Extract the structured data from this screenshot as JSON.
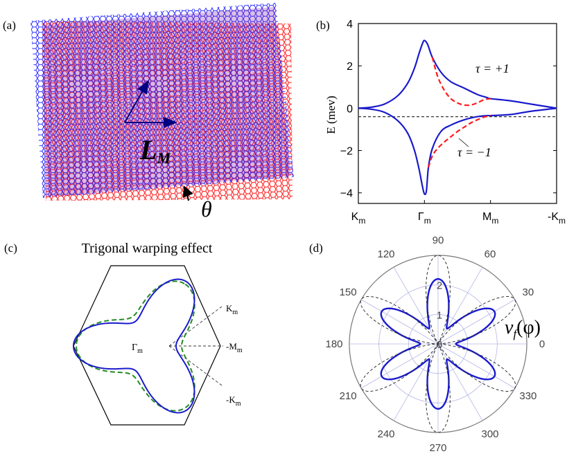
{
  "panels": {
    "a": {
      "label": "(a)",
      "vector_label": "L",
      "vector_subscript": "M",
      "angle_label": "θ",
      "colors": {
        "top_layer": "#1a1aff",
        "bottom_layer": "#ff1a1a",
        "vector": "#000080"
      }
    },
    "b": {
      "label": "(b)"
    },
    "c": {
      "label": "(c)",
      "title": "Trigonal warping effect",
      "point_labels": {
        "gamma": "Γ",
        "gamma_sub": "m",
        "k": "K",
        "k_sub": "m",
        "m": "-M",
        "m_sub": "m",
        "mk": "-K",
        "mk_sub": "m"
      },
      "colors": {
        "solid": "#1a1acc",
        "dashed": "#228b22"
      }
    },
    "d": {
      "label": "(d)",
      "curve_label": "v",
      "curve_label_sub": "f",
      "curve_label_arg": "(φ)"
    }
  },
  "chart_data": [
    {
      "type": "line",
      "panel": "b",
      "ylabel": "E (mev)",
      "ylim": [
        -4.5,
        4
      ],
      "yticks": [
        -4,
        -2,
        0,
        2,
        4
      ],
      "xlim": [
        0,
        3
      ],
      "xtick_positions": [
        0,
        1,
        2,
        3
      ],
      "xtick_labels": [
        {
          "main": "K",
          "sub": "m"
        },
        {
          "main": "Γ",
          "sub": "m"
        },
        {
          "main": "M",
          "sub": "m"
        },
        {
          "main": "-K",
          "sub": "m"
        }
      ],
      "reference_line": -0.4,
      "annotations": [
        {
          "text": "τ = +1"
        },
        {
          "text": "τ = −1"
        }
      ],
      "series": [
        {
          "style": "solid",
          "color": "#1a1acc",
          "x": [
            0,
            0.2,
            0.4,
            0.6,
            0.75,
            0.85,
            0.92,
            0.97,
            1.0,
            1.05,
            1.12,
            1.25,
            1.4,
            1.6,
            1.8,
            1.95,
            2.0,
            2.3,
            2.6,
            3.0
          ],
          "y": [
            0,
            0.05,
            0.2,
            0.6,
            1.2,
            1.9,
            2.6,
            3.05,
            3.2,
            3.0,
            2.4,
            1.7,
            1.25,
            0.95,
            0.65,
            0.5,
            0.45,
            0.35,
            0.2,
            0
          ]
        },
        {
          "style": "solid",
          "color": "#1a1acc",
          "x": [
            0,
            0.2,
            0.4,
            0.6,
            0.75,
            0.85,
            0.92,
            0.97,
            1.0,
            1.03,
            1.06,
            1.12,
            1.25,
            1.4,
            1.6,
            1.8,
            1.95,
            2.0,
            2.3,
            2.6,
            3.0
          ],
          "y": [
            0,
            -0.05,
            -0.2,
            -0.6,
            -1.2,
            -2.0,
            -2.9,
            -3.7,
            -4.05,
            -3.9,
            -2.8,
            -1.9,
            -1.1,
            -0.8,
            -0.55,
            -0.4,
            -0.35,
            -0.35,
            -0.3,
            -0.15,
            0
          ]
        },
        {
          "style": "dashed",
          "color": "#ff1a1a",
          "x": [
            1.12,
            1.2,
            1.3,
            1.4,
            1.5,
            1.6,
            1.7,
            1.8,
            1.9,
            2.0
          ],
          "y": [
            2.4,
            1.5,
            0.85,
            0.45,
            0.25,
            0.15,
            0.15,
            0.25,
            0.4,
            0.45
          ]
        },
        {
          "style": "dashed",
          "color": "#ff1a1a",
          "x": [
            1.06,
            1.12,
            1.2,
            1.3,
            1.4,
            1.5,
            1.6,
            1.7,
            1.8,
            1.9,
            2.0
          ],
          "y": [
            -2.8,
            -2.25,
            -1.9,
            -1.6,
            -1.35,
            -1.1,
            -0.9,
            -0.7,
            -0.55,
            -0.42,
            -0.35
          ]
        }
      ]
    },
    {
      "type": "polar",
      "panel": "d",
      "angle_ticks_deg": [
        0,
        30,
        60,
        90,
        120,
        150,
        180,
        210,
        240,
        270,
        300,
        330
      ],
      "radial_ticks": [
        0,
        1,
        2
      ],
      "rmax": 3,
      "series": [
        {
          "style": "solid",
          "color": "#1a1acc",
          "r_mean": 1.4,
          "r_amp": 0.8,
          "harmonic": 6,
          "phase_deg": 90
        },
        {
          "style": "dashed",
          "color": "#333333",
          "r_mean": 1.5,
          "r_amp": 1.5,
          "harmonic": 6,
          "phase_deg": 90
        }
      ]
    }
  ]
}
